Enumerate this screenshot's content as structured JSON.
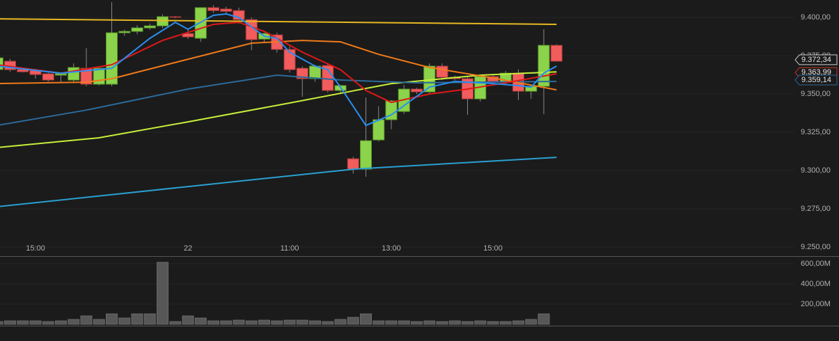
{
  "chart_data": {
    "type": "candlestick",
    "categories": [
      null,
      null,
      null,
      "15:00",
      null,
      null,
      null,
      null,
      null,
      null,
      null,
      null,
      null,
      null,
      null,
      "22",
      null,
      null,
      null,
      null,
      null,
      null,
      null,
      "11:00",
      null,
      null,
      null,
      null,
      null,
      null,
      null,
      "13:00",
      null,
      null,
      null,
      null,
      null,
      null,
      null,
      "15:00",
      null,
      null,
      null,
      null,
      null
    ],
    "open": [
      9366,
      9371.4,
      9366,
      9365.5,
      9363.2,
      9362.3,
      9359.1,
      9366.8,
      9356.4,
      9356.4,
      9390,
      9390.9,
      9393.2,
      9394.5,
      9400.5,
      9389.5,
      9386.4,
      9406.4,
      9405.5,
      9404.5,
      9398.6,
      9385.9,
      9388.6,
      9379.1,
      9366.8,
      9360,
      9368.6,
      9352.3,
      9307.7,
      9300.9,
      9320,
      9333.2,
      9338.6,
      9353.2,
      9351.4,
      9368.2,
      9360.9,
      9360,
      9346.8,
      9361.4,
      9357.7,
      9363.6,
      9351.8,
      9355,
      9381.8
    ],
    "high": [
      9374,
      9373,
      9367,
      9366.5,
      9364,
      9363.5,
      9370,
      9380,
      9368,
      9410,
      9392,
      9395,
      9396,
      9402,
      9401,
      9392,
      9406.4,
      9408,
      9407,
      9406.4,
      9400,
      9390,
      9390,
      9381,
      9368,
      9369,
      9370,
      9356,
      9309,
      9347.7,
      9342,
      9346,
      9356,
      9354,
      9370,
      9370,
      9362,
      9362,
      9362,
      9363,
      9365,
      9366,
      9356,
      9392.3,
      9382.5
    ],
    "low": [
      9365,
      9364.5,
      9364,
      9360,
      9358,
      9357.7,
      9358,
      9355,
      9355.5,
      9355,
      9388,
      9389,
      9392,
      9393,
      9399.5,
      9386,
      9384,
      9403,
      9402,
      9396,
      9378.6,
      9384,
      9377,
      9364,
      9348.2,
      9358,
      9351,
      9351,
      9298,
      9296,
      9319,
      9327,
      9337,
      9350,
      9350,
      9359,
      9359,
      9336.4,
      9345,
      9356,
      9356,
      9346,
      9346.8,
      9336.8,
      9371
    ],
    "close": [
      9373.6,
      9365.9,
      9364.5,
      9362.7,
      9359.1,
      9363.2,
      9367.3,
      9356.4,
      9366.8,
      9390,
      9390.9,
      9393.2,
      9394.5,
      9400.5,
      9400.3,
      9387.3,
      9406.4,
      9404.5,
      9404,
      9398.6,
      9385.5,
      9389.5,
      9379.1,
      9365.9,
      9360,
      9368.2,
      9352.3,
      9355.5,
      9300.9,
      9319.5,
      9333.2,
      9345.5,
      9353.2,
      9351.4,
      9368.2,
      9360.9,
      9360,
      9346.8,
      9361.4,
      9358.2,
      9363.6,
      9351.8,
      9355,
      9381.8,
      9371.4
    ],
    "up_color": "#8bd34a",
    "down_color": "#f25c5c",
    "ylim": [
      9244.1,
      9411.4
    ],
    "yticks": [
      {
        "value": 9250,
        "label": "9.250,00"
      },
      {
        "value": 9275,
        "label": "9.275,00"
      },
      {
        "value": 9300,
        "label": "9.300,00"
      },
      {
        "value": 9325,
        "label": "9.325,00"
      },
      {
        "value": 9350,
        "label": "9.350,00"
      },
      {
        "value": 9375,
        "label": "9.375,00"
      },
      {
        "value": 9400,
        "label": "9.400,00"
      }
    ],
    "grid": true,
    "lines": [
      {
        "color": "#e8b923",
        "x": [
          0,
          44
        ],
        "values": [
          9399.1,
          9395.5
        ]
      },
      {
        "color": "#c6ef3a",
        "x": [
          0,
          8,
          15,
          23,
          31,
          38,
          44
        ],
        "values": [
          9315,
          9321.4,
          9331.8,
          9344.1,
          9356.8,
          9362.3,
          9364.5
        ]
      },
      {
        "color": "#2c6a9a",
        "x": [
          0,
          7,
          15,
          22,
          27,
          33,
          44
        ],
        "values": [
          9329.5,
          9339.5,
          9353.2,
          9362.3,
          9359.1,
          9357.3,
          9358.2
        ]
      },
      {
        "color": "#2aa0d2",
        "x": [
          0,
          15,
          28,
          44
        ],
        "values": [
          9276.4,
          9289.5,
          9300.9,
          9308.6
        ]
      },
      {
        "color": "#f07a1a",
        "x": [
          0,
          7,
          9,
          15,
          20,
          24,
          27,
          30,
          34,
          39,
          44
        ],
        "values": [
          9356.8,
          9357.7,
          9360,
          9372.7,
          9383.2,
          9385,
          9384.1,
          9375.9,
          9367.3,
          9360.5,
          9352.7
        ]
      },
      {
        "color": "#e01818",
        "x": [
          0,
          5,
          9,
          13,
          17,
          19,
          21,
          24,
          27,
          29,
          31,
          34,
          37,
          40,
          44
        ],
        "values": [
          9369.1,
          9363.6,
          9369.1,
          9385,
          9395.5,
          9396.8,
          9390.9,
          9377.3,
          9365.9,
          9352.3,
          9344.5,
          9350,
          9353.2,
          9357.3,
          9363.2
        ]
      },
      {
        "color": "#2a8ef0",
        "x": [
          0,
          5,
          9,
          12,
          14,
          15,
          17,
          18,
          19,
          21,
          22,
          23,
          25,
          26,
          27,
          29,
          31,
          34,
          36,
          39,
          41,
          42,
          43,
          44
        ],
        "values": [
          9368.2,
          9363.6,
          9366.8,
          9386.4,
          9396.8,
          9392.3,
          9401.4,
          9402.3,
          9400,
          9387.7,
          9386.4,
          9377.3,
          9368.2,
          9365.9,
          9354.5,
          9329.5,
          9336.4,
          9354.5,
          9358.2,
          9356.8,
          9355.5,
          9354.5,
          9363.6,
          9368.2
        ]
      }
    ],
    "price_tags": [
      {
        "value": 9372.34,
        "label": "9.372,34",
        "color": "#cfcfcf"
      },
      {
        "value": 9363.99,
        "label": "9.363,99",
        "color": "#c0392b"
      },
      {
        "value": 9359.14,
        "label": "9.359,14",
        "color": "#2c6a9a"
      }
    ],
    "volume": {
      "color": "#575757",
      "values": [
        27,
        34,
        34,
        34,
        27,
        34,
        48,
        83,
        48,
        103,
        62,
        103,
        103,
        614,
        27,
        83,
        62,
        34,
        34,
        41,
        34,
        41,
        34,
        41,
        41,
        34,
        27,
        48,
        69,
        103,
        34,
        34,
        34,
        27,
        34,
        27,
        34,
        27,
        34,
        27,
        27,
        34,
        48,
        103,
        null
      ],
      "ylim": [
        0,
        662
      ],
      "yticks": [
        {
          "value": 200,
          "label": "200,00M"
        },
        {
          "value": 400,
          "label": "400,00M"
        },
        {
          "value": 600,
          "label": "600,00M"
        }
      ]
    }
  }
}
